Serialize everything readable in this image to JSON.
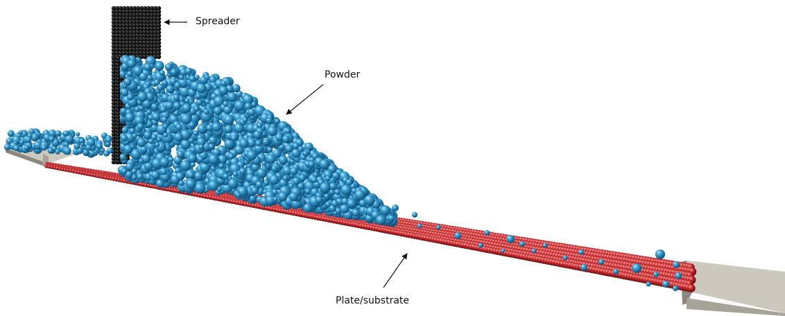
{
  "labels": {
    "spreader": "Spreader",
    "powder": "Powder",
    "plate": "Plate/substrate"
  },
  "colors": {
    "background": "#ffffff",
    "spreader": "#0c0c0c",
    "powder": "#2a8fc4",
    "powder_highlight": "#9fd6f3",
    "plate": "#c2262a",
    "plate_highlight": "#f08a86",
    "ledge": "#cdc8bd",
    "ledge_shadow": "#8b877e",
    "arrow": "#111111"
  }
}
